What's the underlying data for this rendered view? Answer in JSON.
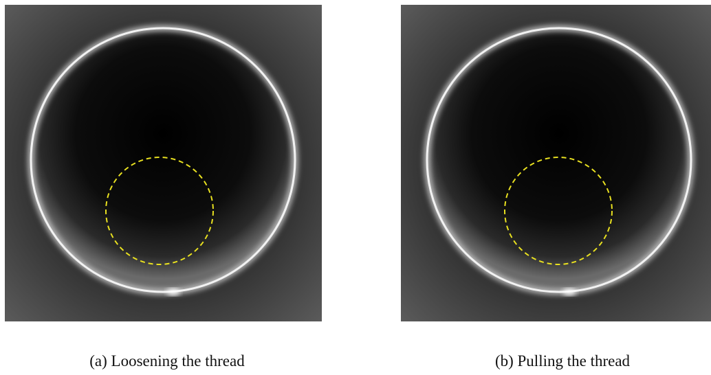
{
  "panels": [
    {
      "caption": "(a) Loosening the thread"
    },
    {
      "caption": "(b) Pulling the thread"
    }
  ]
}
